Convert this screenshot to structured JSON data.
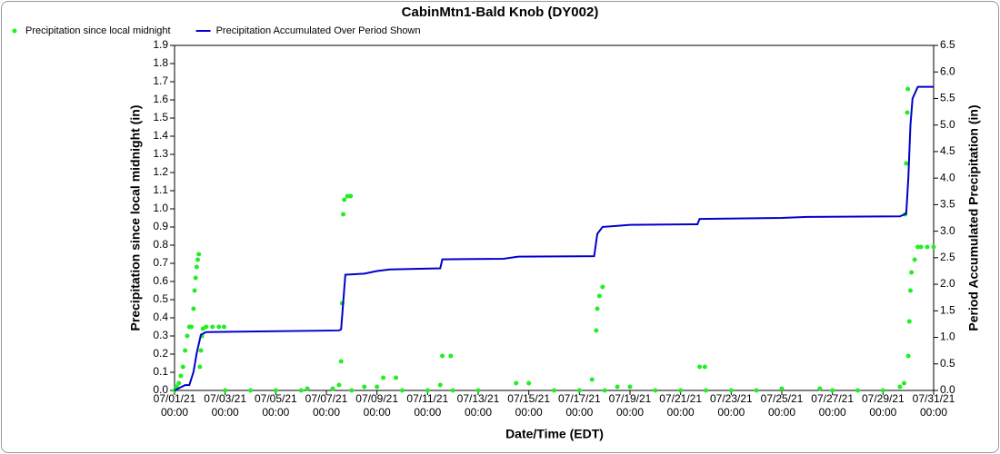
{
  "chart_data": {
    "type": "combo",
    "title": "CabinMtn1-Bald Knob (DY002)",
    "x_label": "Date/Time (EDT)",
    "y_label": "Precipitation since local midnight (in)",
    "y2_label": "Period Accumulated Precipitation (in)",
    "xlim": [
      "07/01/21 00:00",
      "07/31/21 00:00"
    ],
    "xticks": [
      "07/01/21 00:00",
      "07/03/21 00:00",
      "07/05/21 00:00",
      "07/07/21 00:00",
      "07/09/21 00:00",
      "07/11/21 00:00",
      "07/13/21 00:00",
      "07/15/21 00:00",
      "07/17/21 00:00",
      "07/19/21 00:00",
      "07/21/21 00:00",
      "07/23/21 00:00",
      "07/25/21 00:00",
      "07/27/21 00:00",
      "07/29/21 00:00",
      "07/31/21 00:00"
    ],
    "ylim": [
      0,
      1.9
    ],
    "yticks": [
      {
        "value": 0,
        "label": "0.0"
      },
      0.1,
      0.2,
      0.3,
      0.4,
      0.5,
      0.6,
      0.7,
      0.8,
      0.9,
      {
        "value": 1,
        "label": "1.0"
      },
      1.1,
      1.2,
      1.3,
      1.4,
      1.5,
      1.6,
      1.7,
      1.8,
      1.9
    ],
    "y2lim": [
      0,
      6.5
    ],
    "y2ticks": [
      {
        "value": 0,
        "label": "0.0"
      },
      0.5,
      {
        "value": 1,
        "label": "1.0"
      },
      1.5,
      {
        "value": 2,
        "label": "2.0"
      },
      2.5,
      {
        "value": 3,
        "label": "3.0"
      },
      3.5,
      {
        "value": 4,
        "label": "4.0"
      },
      4.5,
      {
        "value": 5,
        "label": "5.0"
      },
      5.5,
      {
        "value": 6,
        "label": "6.0"
      },
      6.5
    ],
    "series": [
      {
        "name": "Precipitation since local midnight",
        "type": "scatter",
        "color": "#22ee22",
        "x": [
          "07/01/21 00:00",
          "07/01/21 02:00",
          "07/01/21 04:00",
          "07/01/21 06:00",
          "07/01/21 08:00",
          "07/01/21 10:00",
          "07/01/21 12:00",
          "07/01/21 14:00",
          "07/01/21 16:00",
          "07/01/21 18:00",
          "07/01/21 19:00",
          "07/01/21 20:00",
          "07/01/21 21:00",
          "07/01/21 22:00",
          "07/01/21 23:00",
          "07/02/21 00:00",
          "07/02/21 01:00",
          "07/02/21 02:00",
          "07/02/21 03:00",
          "07/02/21 06:00",
          "07/02/21 12:00",
          "07/02/21 18:00",
          "07/02/21 23:00",
          "07/03/21 00:00",
          "07/04/21 00:00",
          "07/05/21 00:00",
          "07/06/21 00:00",
          "07/06/21 06:00",
          "07/07/21 06:00",
          "07/07/21 12:00",
          "07/07/21 14:00",
          "07/07/21 15:00",
          "07/07/21 16:00",
          "07/07/21 17:00",
          "07/07/21 20:00",
          "07/07/21 23:00",
          "07/08/21 00:00",
          "07/08/21 12:00",
          "07/09/21 00:00",
          "07/09/21 06:00",
          "07/09/21 18:00",
          "07/10/21 00:00",
          "07/11/21 00:00",
          "07/11/21 12:00",
          "07/11/21 14:00",
          "07/11/21 22:00",
          "07/12/21 00:00",
          "07/13/21 00:00",
          "07/14/21 12:00",
          "07/15/21 00:00",
          "07/16/21 00:00",
          "07/17/21 00:00",
          "07/17/21 12:00",
          "07/17/21 16:00",
          "07/17/21 17:00",
          "07/17/21 19:00",
          "07/17/21 22:00",
          "07/18/21 00:00",
          "07/18/21 12:00",
          "07/19/21 00:00",
          "07/20/21 00:00",
          "07/21/21 00:00",
          "07/21/21 18:00",
          "07/21/21 23:00",
          "07/22/21 00:00",
          "07/23/21 00:00",
          "07/24/21 00:00",
          "07/25/21 00:00",
          "07/26/21 12:00",
          "07/27/21 00:00",
          "07/28/21 00:00",
          "07/29/21 00:00",
          "07/29/21 16:00",
          "07/29/21 20:00",
          "07/29/21 21:00",
          "07/29/21 22:00",
          "07/29/21 23:00",
          "07/29/21 23:30",
          "07/30/21 00:00",
          "07/30/21 01:00",
          "07/30/21 02:00",
          "07/30/21 03:00",
          "07/30/21 06:00",
          "07/30/21 09:00",
          "07/30/21 12:00",
          "07/30/21 18:00",
          "07/31/21 00:00"
        ],
        "values": [
          0,
          0.02,
          0.04,
          0.08,
          0.13,
          0.22,
          0.3,
          0.35,
          0.35,
          0.45,
          0.55,
          0.62,
          0.68,
          0.72,
          0.75,
          0.13,
          0.22,
          0.3,
          0.34,
          0.35,
          0.35,
          0.35,
          0.35,
          0,
          0,
          0,
          0,
          0.01,
          0.01,
          0.03,
          0.16,
          0.48,
          0.97,
          1.05,
          1.07,
          1.07,
          0,
          0.02,
          0.02,
          0.07,
          0.07,
          0,
          0,
          0.03,
          0.19,
          0.19,
          0,
          0,
          0.04,
          0.04,
          0,
          0,
          0.06,
          0.33,
          0.45,
          0.52,
          0.57,
          0,
          0.02,
          0.02,
          0,
          0,
          0.13,
          0.13,
          0,
          0,
          0,
          0.01,
          0.01,
          0,
          0,
          0,
          0.02,
          0.04,
          0.97,
          1.25,
          1.53,
          1.66,
          0.19,
          0.38,
          0.55,
          0.65,
          0.72,
          0.79,
          0.79,
          0.79,
          0.79
        ]
      },
      {
        "name": "Precipitation Accumulated Over Period Shown",
        "type": "line",
        "axis": "y2",
        "color": "#0000cc",
        "x": [
          "07/01/21 00:00",
          "07/01/21 10:00",
          "07/01/21 14:00",
          "07/01/21 18:00",
          "07/01/21 21:00",
          "07/02/21 01:00",
          "07/02/21 06:00",
          "07/07/21 12:00",
          "07/07/21 14:00",
          "07/07/21 18:00",
          "07/08/21 12:00",
          "07/09/21 00:00",
          "07/09/21 12:00",
          "07/11/21 12:00",
          "07/11/21 14:00",
          "07/14/21 00:00",
          "07/14/21 14:00",
          "07/17/21 14:00",
          "07/17/21 17:00",
          "07/17/21 22:00",
          "07/18/21 12:00",
          "07/19/21 00:00",
          "07/21/21 16:00",
          "07/21/21 18:00",
          "07/25/21 00:00",
          "07/26/21 00:00",
          "07/29/21 16:00",
          "07/29/21 22:00",
          "07/30/21 00:00",
          "07/30/21 02:00",
          "07/30/21 04:00",
          "07/30/21 09:00",
          "07/31/21 00:00"
        ],
        "values": [
          0,
          0.1,
          0.1,
          0.35,
          0.7,
          1.05,
          1.1,
          1.13,
          1.15,
          2.18,
          2.2,
          2.25,
          2.28,
          2.3,
          2.47,
          2.48,
          2.52,
          2.53,
          2.95,
          3.08,
          3.1,
          3.12,
          3.13,
          3.23,
          3.25,
          3.27,
          3.28,
          3.33,
          4.0,
          5.0,
          5.5,
          5.72,
          5.72
        ]
      }
    ]
  }
}
